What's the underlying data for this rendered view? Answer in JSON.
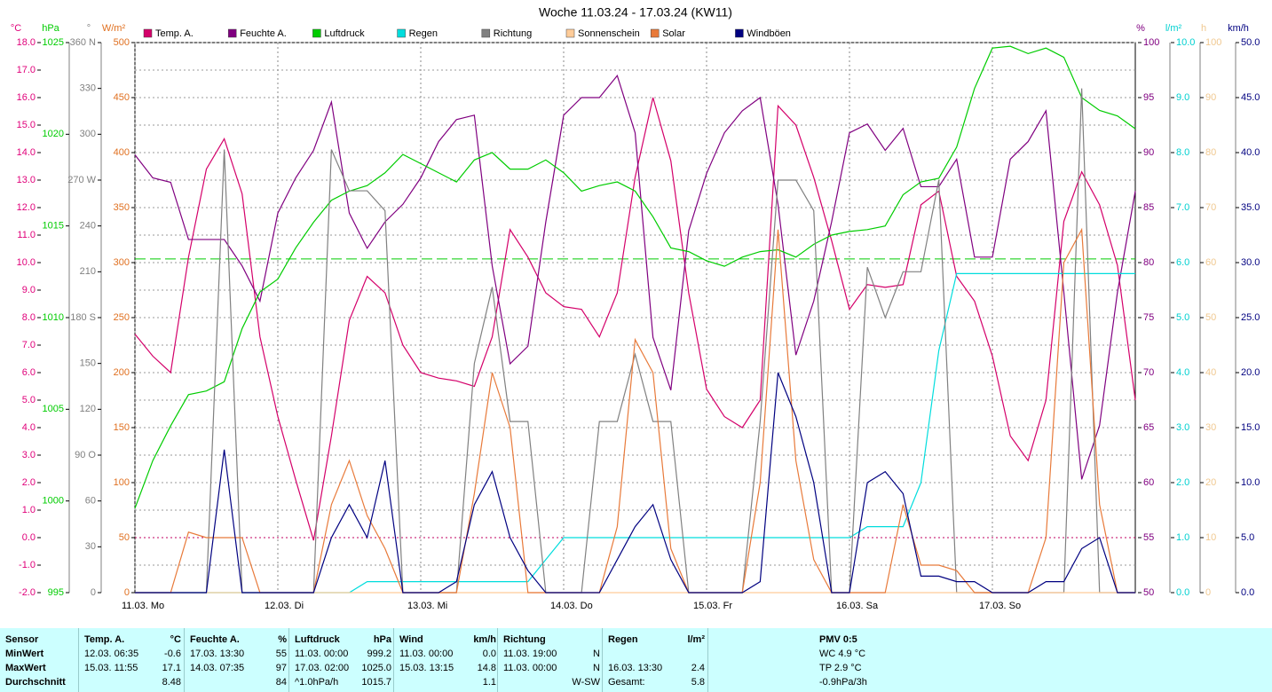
{
  "chart_data": {
    "type": "line",
    "title": "Woche 11.03.24 - 17.03.24 (KW11)",
    "x": [
      0,
      3,
      6,
      9,
      12,
      15,
      18,
      21,
      24,
      27,
      30,
      33,
      36,
      39,
      42,
      45,
      48,
      51,
      54,
      57,
      60,
      63,
      66,
      69,
      72,
      75,
      78,
      81,
      84,
      87,
      90,
      93,
      96,
      99,
      102,
      105,
      108,
      111,
      114,
      117,
      120,
      123,
      126,
      129,
      132,
      135,
      138,
      141,
      144,
      147,
      150,
      153,
      156,
      159,
      162,
      165,
      168
    ],
    "xlim": [
      0,
      168
    ],
    "xticks": [
      {
        "value": 0,
        "label": "11.03. Mo"
      },
      {
        "value": 24,
        "label": "12.03. Di"
      },
      {
        "value": 48,
        "label": "13.03. Mi"
      },
      {
        "value": 72,
        "label": "14.03. Do"
      },
      {
        "value": 96,
        "label": "15.03. Fr"
      },
      {
        "value": 120,
        "label": "16.03. Sa"
      },
      {
        "value": 144,
        "label": "17.03. So"
      }
    ],
    "grid": true,
    "y_axes": [
      {
        "id": "y",
        "label": "°C",
        "color": "#e0007a",
        "ylim": [
          -2,
          18
        ],
        "yticks": [
          {
            "value": -2,
            "label": "-2.0"
          },
          {
            "value": -1,
            "label": "-1.0"
          },
          {
            "value": 0,
            "label": "0.0"
          },
          {
            "value": 1,
            "label": "1.0"
          },
          {
            "value": 2,
            "label": "2.0"
          },
          {
            "value": 3,
            "label": "3.0"
          },
          {
            "value": 4,
            "label": "4.0"
          },
          {
            "value": 5,
            "label": "5.0"
          },
          {
            "value": 6,
            "label": "6.0"
          },
          {
            "value": 7,
            "label": "7.0"
          },
          {
            "value": 8,
            "label": "8.0"
          },
          {
            "value": 9,
            "label": "9.0"
          },
          {
            "value": 10,
            "label": "10.0"
          },
          {
            "value": 11,
            "label": "11.0"
          },
          {
            "value": 12,
            "label": "12.0"
          },
          {
            "value": 13,
            "label": "13.0"
          },
          {
            "value": 14,
            "label": "14.0"
          },
          {
            "value": 15,
            "label": "15.0"
          },
          {
            "value": 16,
            "label": "16.0"
          },
          {
            "value": 17,
            "label": "17.0"
          },
          {
            "value": 18,
            "label": "18.0"
          }
        ]
      },
      {
        "id": "y2",
        "label": "hPa",
        "color": "#00cc00",
        "ylim": [
          995,
          1025
        ],
        "yticks": [
          995,
          1000,
          1005,
          1010,
          1015,
          1020,
          1025
        ]
      },
      {
        "id": "y3",
        "label": "°",
        "color": "#808080",
        "ylim": [
          0,
          360
        ],
        "yticks": [
          0,
          30,
          60,
          {
            "value": 90,
            "label": "90 O"
          },
          120,
          150,
          {
            "value": 180,
            "label": "180 S"
          },
          210,
          240,
          {
            "value": 270,
            "label": "270 W"
          },
          300,
          330,
          {
            "value": 360,
            "label": "360 N"
          }
        ]
      },
      {
        "id": "y4",
        "label": "W/m²",
        "color": "#e07020",
        "ylim": [
          0,
          500
        ],
        "yticks": [
          0,
          50,
          100,
          150,
          200,
          250,
          300,
          350,
          400,
          450,
          500
        ]
      },
      {
        "id": "y5",
        "label": "%",
        "color": "#800080",
        "ylim": [
          50,
          100
        ],
        "yticks": [
          50,
          55,
          60,
          65,
          70,
          75,
          80,
          85,
          90,
          95,
          100
        ]
      },
      {
        "id": "y6",
        "label": "l/m²",
        "color": "#00d0d0",
        "ylim": [
          0,
          10
        ],
        "yticks": [
          {
            "value": 0,
            "label": "0.0"
          },
          {
            "value": 1,
            "label": "1.0"
          },
          {
            "value": 2,
            "label": "2.0"
          },
          {
            "value": 3,
            "label": "3.0"
          },
          {
            "value": 4,
            "label": "4.0"
          },
          {
            "value": 5,
            "label": "5.0"
          },
          {
            "value": 6,
            "label": "6.0"
          },
          {
            "value": 7,
            "label": "7.0"
          },
          {
            "value": 8,
            "label": "8.0"
          },
          {
            "value": 9,
            "label": "9.0"
          },
          {
            "value": 10,
            "label": "10.0"
          }
        ]
      },
      {
        "id": "y7",
        "label": "h",
        "color": "#f0c890",
        "ylim": [
          0,
          100
        ],
        "yticks": [
          0,
          10,
          20,
          30,
          40,
          50,
          60,
          70,
          80,
          90,
          100
        ]
      },
      {
        "id": "y8",
        "label": "km/h",
        "color": "#000080",
        "ylim": [
          0,
          50
        ],
        "yticks": [
          {
            "value": 0,
            "label": "0.0"
          },
          {
            "value": 5,
            "label": "5.0"
          },
          {
            "value": 10,
            "label": "10.0"
          },
          {
            "value": 15,
            "label": "15.0"
          },
          {
            "value": 20,
            "label": "20.0"
          },
          {
            "value": 25,
            "label": "25.0"
          },
          {
            "value": 30,
            "label": "30.0"
          },
          {
            "value": 35,
            "label": "35.0"
          },
          {
            "value": 40,
            "label": "40.0"
          },
          {
            "value": 45,
            "label": "45.0"
          },
          {
            "value": 50,
            "label": "50.0"
          }
        ]
      }
    ],
    "ref_lines": [
      {
        "axis": "y",
        "value": 0,
        "color": "#c00060"
      },
      {
        "axis": "y2",
        "value": 1013.2,
        "color": "#00cc00"
      }
    ],
    "series": [
      {
        "name": "Temp. A.",
        "color": "#d4006a",
        "axis": "y",
        "values": [
          7.4,
          6.6,
          6.0,
          10.2,
          13.4,
          14.5,
          12.5,
          7.3,
          4.4,
          2.1,
          -0.1,
          3.7,
          7.9,
          9.5,
          8.9,
          7.0,
          6.0,
          5.8,
          5.7,
          5.5,
          7.3,
          11.2,
          10.2,
          8.9,
          8.4,
          8.3,
          7.3,
          8.9,
          13.1,
          16.0,
          13.7,
          8.9,
          5.4,
          4.4,
          4.0,
          5.0,
          15.7,
          15.0,
          13.1,
          10.8,
          8.3,
          9.2,
          9.1,
          9.2,
          12.1,
          12.6,
          9.5,
          8.6,
          6.6,
          3.7,
          2.8,
          5.0,
          11.5,
          13.3,
          12.1,
          9.9,
          5.0
        ]
      },
      {
        "name": "Feuchte A.",
        "color": "#800080",
        "axis": "y5",
        "values": [
          89.8,
          87.7,
          87.3,
          82.1,
          82.1,
          82.1,
          79.7,
          76.5,
          84.5,
          87.7,
          90.2,
          94.6,
          84.5,
          81.3,
          83.7,
          85.3,
          87.7,
          91.0,
          93.0,
          93.4,
          79.7,
          70.8,
          72.4,
          83.7,
          93.4,
          95.0,
          95.0,
          97.0,
          91.8,
          73.2,
          68.4,
          82.9,
          88.1,
          91.8,
          93.8,
          95.0,
          85.3,
          71.6,
          76.5,
          83.7,
          91.8,
          92.6,
          90.2,
          92.2,
          86.9,
          86.9,
          89.4,
          80.5,
          80.5,
          89.4,
          91.0,
          93.8,
          77.3,
          60.3,
          65.2,
          77.3,
          86.5
        ]
      },
      {
        "name": "Luftdruck",
        "color": "#00cc00",
        "axis": "y2",
        "values": [
          999.6,
          1002.2,
          1004.1,
          1005.8,
          1006.0,
          1006.5,
          1009.4,
          1011.4,
          1012.1,
          1013.8,
          1015.2,
          1016.4,
          1016.9,
          1017.2,
          1017.9,
          1018.9,
          1018.4,
          1017.9,
          1017.4,
          1018.6,
          1019.0,
          1018.1,
          1018.1,
          1018.6,
          1017.9,
          1016.9,
          1017.2,
          1017.4,
          1016.9,
          1015.5,
          1013.8,
          1013.6,
          1013.1,
          1012.8,
          1013.3,
          1013.6,
          1013.7,
          1013.3,
          1014.0,
          1014.5,
          1014.7,
          1014.8,
          1015.0,
          1016.7,
          1017.4,
          1017.6,
          1019.3,
          1022.5,
          1024.7,
          1024.8,
          1024.4,
          1024.7,
          1024.2,
          1022.0,
          1021.3,
          1021.0,
          1020.3
        ]
      },
      {
        "name": "Regen",
        "color": "#00dddd",
        "axis": "y6",
        "values": [
          0,
          0,
          0,
          0,
          0,
          0,
          0,
          0,
          0,
          0,
          0,
          0,
          0,
          0.2,
          0.2,
          0.2,
          0.2,
          0.2,
          0.2,
          0.2,
          0.2,
          0.2,
          0.2,
          0.6,
          1.0,
          1.0,
          1.0,
          1.0,
          1.0,
          1.0,
          1.0,
          1.0,
          1.0,
          1.0,
          1.0,
          1.0,
          1.0,
          1.0,
          1.0,
          1.0,
          1.0,
          1.2,
          1.2,
          1.2,
          2.0,
          4.4,
          5.8,
          5.8,
          5.8,
          5.8,
          5.8,
          5.8,
          5.8,
          5.8,
          5.8,
          5.8,
          5.8
        ]
      },
      {
        "name": "Richtung",
        "color": "#808080",
        "axis": "y3",
        "values": [
          0,
          0,
          0,
          0,
          0,
          290,
          0,
          0,
          0,
          0,
          0,
          290,
          263,
          263,
          250,
          0,
          0,
          0,
          0,
          150,
          200,
          112,
          112,
          0,
          0,
          0,
          112,
          112,
          156,
          112,
          112,
          0,
          0,
          0,
          0,
          112,
          270,
          270,
          250,
          0,
          0,
          213,
          180,
          210,
          210,
          270,
          0,
          0,
          0,
          0,
          0,
          0,
          0,
          330,
          0,
          0,
          0
        ]
      },
      {
        "name": "Sonnenschein",
        "color": "#ffcc99",
        "axis": "y7",
        "values": [
          0,
          0,
          0,
          0,
          0,
          0,
          0,
          0,
          0,
          0,
          0,
          0,
          0,
          0,
          0,
          0,
          0,
          0,
          0,
          0,
          0,
          0,
          0,
          0,
          0,
          0,
          0,
          0,
          0,
          0,
          0,
          0,
          0,
          0,
          0,
          0,
          0,
          0,
          0,
          0,
          0,
          0,
          0,
          0,
          0,
          0,
          0,
          0,
          0,
          0,
          0,
          0,
          0,
          0,
          0,
          0,
          0
        ]
      },
      {
        "name": "Solar",
        "color": "#e87a3a",
        "axis": "y4",
        "values": [
          0,
          0,
          0,
          55,
          50,
          50,
          50,
          0,
          0,
          0,
          0,
          80,
          120,
          70,
          40,
          0,
          0,
          0,
          0,
          90,
          200,
          150,
          0,
          0,
          0,
          0,
          0,
          60,
          230,
          200,
          40,
          0,
          0,
          0,
          0,
          100,
          330,
          120,
          30,
          0,
          0,
          0,
          0,
          80,
          25,
          25,
          20,
          0,
          0,
          0,
          0,
          50,
          300,
          330,
          80,
          0,
          0
        ]
      },
      {
        "name": "Windböen",
        "color": "#000080",
        "axis": "y8",
        "values": [
          0,
          0,
          0,
          0,
          0,
          13.0,
          0,
          0,
          0,
          0,
          0,
          5,
          8,
          5,
          12,
          0,
          0,
          0,
          1,
          8,
          11,
          5,
          2,
          0,
          0,
          0,
          0,
          3,
          6,
          8,
          3,
          0,
          0,
          0,
          0,
          1,
          20,
          16,
          10,
          0,
          0,
          10,
          11,
          9,
          1.5,
          1.5,
          1,
          1,
          0,
          0,
          0,
          1,
          1,
          4,
          5,
          0,
          0
        ]
      }
    ]
  },
  "table": {
    "corner": "Sensor",
    "columns": [
      {
        "name": "Temp. A.",
        "unit": "°C"
      },
      {
        "name": "Feuchte A.",
        "unit": "%"
      },
      {
        "name": "Luftdruck",
        "unit": "hPa"
      },
      {
        "name": "Wind",
        "unit": "km/h"
      },
      {
        "name": "Richtung"
      },
      {
        "name": "Regen",
        "unit": "l/m²"
      },
      {
        "name": "PMV 0:5"
      }
    ],
    "rows": [
      {
        "label": "MinWert",
        "cells": [
          {
            "time": "12.03. 06:35",
            "value": "-0.6"
          },
          {
            "time": "17.03. 13:30",
            "value": "55"
          },
          {
            "time": "11.03. 00:00",
            "value": "999.2"
          },
          {
            "time": "11.03. 00:00",
            "value": "0.0"
          },
          {
            "time": "11.03. 19:00",
            "value": "N"
          },
          null,
          {
            "text": "WC 4.9 °C"
          }
        ]
      },
      {
        "label": "MaxWert",
        "cells": [
          {
            "time": "15.03. 11:55",
            "value": "17.1"
          },
          {
            "time": "14.03. 07:35",
            "value": "97"
          },
          {
            "time": "17.03. 02:00",
            "value": "1025.0"
          },
          {
            "time": "15.03. 13:15",
            "value": "14.8"
          },
          {
            "time": "11.03. 00:00",
            "value": "N"
          },
          {
            "time": "16.03. 13:30",
            "value": "2.4"
          },
          {
            "text": "TP 2.9 °C"
          }
        ]
      },
      {
        "label": "Durchschnitt",
        "cells": [
          {
            "value": "8.48"
          },
          {
            "value": "84"
          },
          {
            "time": "^1.0hPa/h",
            "value": "1015.7"
          },
          {
            "value": "1.1"
          },
          {
            "value": "W-SW"
          },
          {
            "time": "Gesamt:",
            "value": "5.8"
          },
          {
            "text": "-0.9hPa/3h"
          }
        ]
      }
    ]
  }
}
